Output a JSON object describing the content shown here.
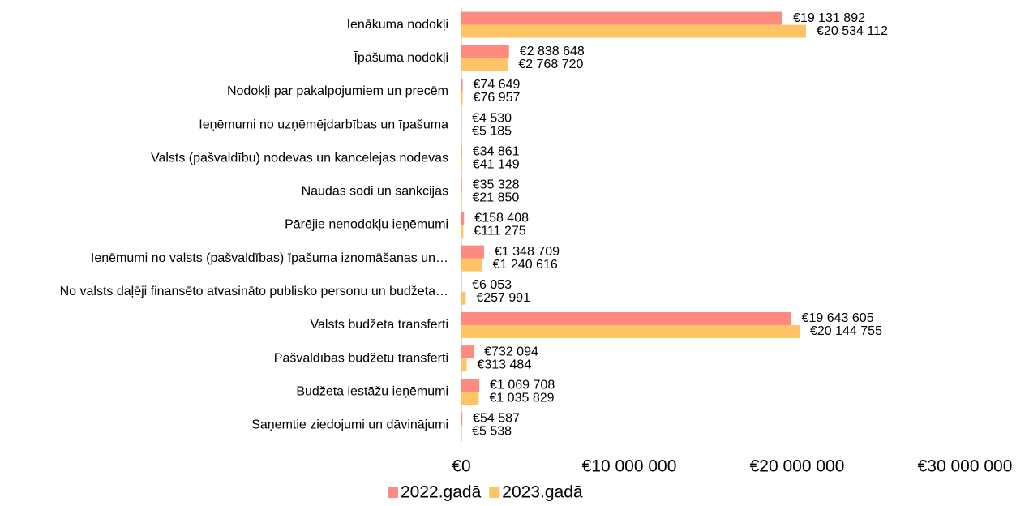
{
  "chart_data": {
    "type": "hbar",
    "categories": [
      "Ienākuma nodokļi",
      "Īpašuma nodokļi",
      "Nodokļi par pakalpojumiem un precēm",
      "Ieņēmumi no uzņēmējdarbības un īpašuma",
      "Valsts (pašvaldību) nodevas un kancelejas nodevas",
      "Naudas sodi un sankcijas",
      "Pārējie nenodokļu ieņēmumi",
      "Ieņēmumi no valsts (pašvaldības) īpašuma iznomāšanas un…",
      "No valsts daļēji finansēto atvasināto publisko personu un budžeta…",
      "Valsts budžeta transferti",
      "Pašvaldības budžetu transferti",
      "Budžeta iestāžu ieņēmumi",
      "Saņemtie ziedojumi un dāvinājumi"
    ],
    "series": [
      {
        "name": "2022.gadā",
        "color": "#ff8a80",
        "values": [
          19131892,
          2838648,
          74649,
          4530,
          34861,
          35328,
          158408,
          1348709,
          6053,
          19643605,
          732094,
          1069708,
          54587
        ],
        "value_labels": [
          "€19 131 892",
          "€2 838 648",
          "€74 649",
          "€4 530",
          "€34 861",
          "€35 328",
          "€158 408",
          "€1 348 709",
          "€6 053",
          "€19 643 605",
          "€732 094",
          "€1 069 708",
          "€54 587"
        ]
      },
      {
        "name": "2023.gadā",
        "color": "#ffc466",
        "values": [
          20534112,
          2768720,
          76957,
          5185,
          41149,
          21850,
          111275,
          1240616,
          257991,
          20144755,
          313484,
          1035829,
          5538
        ],
        "value_labels": [
          "€20 534 112",
          "€2 768 720",
          "€76 957",
          "€5 185",
          "€41 149",
          "€21 850",
          "€111 275",
          "€1 240 616",
          "€257 991",
          "€20 144 755",
          "€313 484",
          "€1 035 829",
          "€5 538"
        ]
      }
    ],
    "xlim": [
      0,
      30000000
    ],
    "xticks": [
      {
        "value": 0,
        "label": "€0"
      },
      {
        "value": 10000000,
        "label": "€10 000 000"
      },
      {
        "value": 20000000,
        "label": "€20 000 000"
      },
      {
        "value": 30000000,
        "label": "€30 000 000"
      }
    ],
    "grid": false,
    "legend": "bottom"
  }
}
